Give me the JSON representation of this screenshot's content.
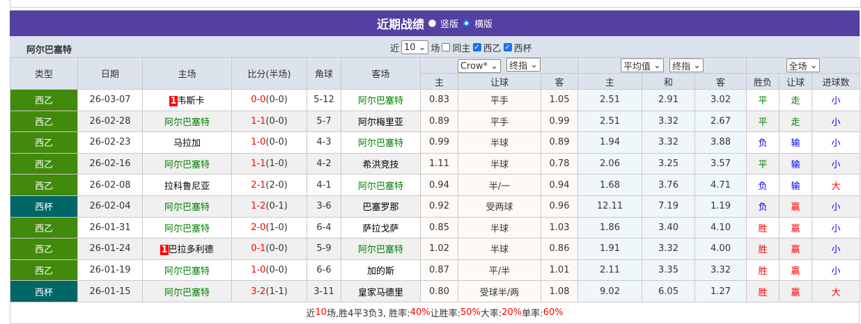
{
  "title": "近期战绩",
  "view_options": [
    "竖版",
    "横版"
  ],
  "view_selected": "横版",
  "team": "阿尔巴塞特",
  "filter": {
    "prefix": "近",
    "count": "10",
    "suffix": "场",
    "same_home": "同主",
    "same_home_checked": false,
    "leagues": [
      {
        "label": "西乙",
        "checked": true
      },
      {
        "label": "西杯",
        "checked": true
      }
    ]
  },
  "headers": {
    "type": "类型",
    "date": "日期",
    "home": "主场",
    "score": "比分(半场)",
    "corner": "角球",
    "away": "客场",
    "company": "Crow*",
    "asian_kind": "终指",
    "euro_kind": "平均值",
    "euro_time": "终指",
    "period": "全场",
    "sub": [
      "主",
      "让球",
      "客",
      "主",
      "和",
      "客",
      "胜负",
      "让球",
      "进球数"
    ]
  },
  "colors": {
    "西乙": "#418a0c",
    "西杯": "#006666",
    "title_bg": "#5340a0"
  },
  "rows": [
    {
      "league": "西乙",
      "date": "26-03-07",
      "home": "韦斯卡",
      "home_rank": "1",
      "home_green": false,
      "score": "0-0",
      "half": "(0-0)",
      "corner": "5-12",
      "away": "阿尔巴塞特",
      "away_green": true,
      "ah": "0.83",
      "line": "平手",
      "aa": "1.05",
      "eh": "2.51",
      "ed": "2.91",
      "ea": "3.02",
      "res": "平",
      "ares": "走",
      "ou": "小"
    },
    {
      "league": "西乙",
      "date": "26-02-28",
      "home": "阿尔巴塞特",
      "home_green": true,
      "score": "1-1",
      "half": "(0-0)",
      "corner": "5-7",
      "away": "阿尔梅里亚",
      "away_green": false,
      "ah": "0.89",
      "line": "平手",
      "aa": "0.99",
      "eh": "2.51",
      "ed": "3.32",
      "ea": "2.67",
      "res": "平",
      "ares": "走",
      "ou": "小"
    },
    {
      "league": "西乙",
      "date": "26-02-23",
      "home": "马拉加",
      "home_green": false,
      "score": "1-0",
      "half": "(0-0)",
      "corner": "4-3",
      "away": "阿尔巴塞特",
      "away_green": true,
      "ah": "0.99",
      "line": "半球",
      "aa": "0.89",
      "eh": "1.94",
      "ed": "3.32",
      "ea": "3.88",
      "res": "负",
      "ares": "输",
      "ou": "小"
    },
    {
      "league": "西乙",
      "date": "26-02-16",
      "home": "阿尔巴塞特",
      "home_green": true,
      "score": "1-1",
      "half": "(1-0)",
      "corner": "4-2",
      "away": "希洪竞技",
      "away_green": false,
      "ah": "1.11",
      "line": "半球",
      "aa": "0.78",
      "eh": "2.06",
      "ed": "3.25",
      "ea": "3.57",
      "res": "平",
      "ares": "输",
      "ou": "小"
    },
    {
      "league": "西乙",
      "date": "26-02-08",
      "home": "拉科鲁尼亚",
      "home_green": false,
      "score": "2-1",
      "half": "(2-0)",
      "corner": "4-1",
      "away": "阿尔巴塞特",
      "away_green": true,
      "ah": "0.94",
      "line": "半/一",
      "aa": "0.94",
      "eh": "1.68",
      "ed": "3.76",
      "ea": "4.71",
      "res": "负",
      "ares": "输",
      "ou": "大"
    },
    {
      "league": "西杯",
      "date": "26-02-04",
      "home": "阿尔巴塞特",
      "home_green": true,
      "score": "1-2",
      "half": "(0-1)",
      "corner": "3-6",
      "away": "巴塞罗那",
      "away_green": false,
      "ah": "0.92",
      "line": "受两球",
      "aa": "0.96",
      "eh": "12.11",
      "ed": "7.19",
      "ea": "1.19",
      "res": "负",
      "ares": "赢",
      "ou": "小"
    },
    {
      "league": "西乙",
      "date": "26-01-31",
      "home": "阿尔巴塞特",
      "home_green": true,
      "score": "2-0",
      "half": "(1-0)",
      "corner": "6-4",
      "away": "萨拉戈萨",
      "away_green": false,
      "ah": "0.85",
      "line": "半球",
      "aa": "1.03",
      "eh": "1.86",
      "ed": "3.40",
      "ea": "4.10",
      "res": "胜",
      "ares": "赢",
      "ou": "小"
    },
    {
      "league": "西乙",
      "date": "26-01-24",
      "home": "巴拉多利德",
      "home_rank": "1",
      "home_green": false,
      "score": "0-1",
      "half": "(0-0)",
      "corner": "5-9",
      "away": "阿尔巴塞特",
      "away_green": true,
      "ah": "1.02",
      "line": "半球",
      "aa": "0.86",
      "eh": "1.91",
      "ed": "3.32",
      "ea": "4.00",
      "res": "胜",
      "ares": "赢",
      "ou": "小"
    },
    {
      "league": "西乙",
      "date": "26-01-19",
      "home": "阿尔巴塞特",
      "home_green": true,
      "score": "1-0",
      "half": "(0-0)",
      "corner": "6-6",
      "away": "加的斯",
      "away_green": false,
      "ah": "0.87",
      "line": "平/半",
      "aa": "1.01",
      "eh": "2.11",
      "ed": "3.35",
      "ea": "3.32",
      "res": "胜",
      "ares": "赢",
      "ou": "小"
    },
    {
      "league": "西杯",
      "date": "26-01-15",
      "home": "阿尔巴塞特",
      "home_green": true,
      "score": "3-2",
      "half": "(1-1)",
      "corner": "3-11",
      "away": "皇家马德里",
      "away_green": false,
      "ah": "0.80",
      "line": "受球半/两",
      "aa": "1.08",
      "eh": "9.02",
      "ed": "6.05",
      "ea": "1.27",
      "res": "胜",
      "ares": "赢",
      "ou": "大"
    }
  ],
  "summary": {
    "p1": "近",
    "n": "10",
    "p2": "场,胜4平3负3, 胜率:",
    "win": "40%",
    "p3": " 让胜率:",
    "hwin": "50%",
    "p4": " 大率:",
    "big": "20%",
    "p5": " 单率:",
    "odd": "60%"
  }
}
